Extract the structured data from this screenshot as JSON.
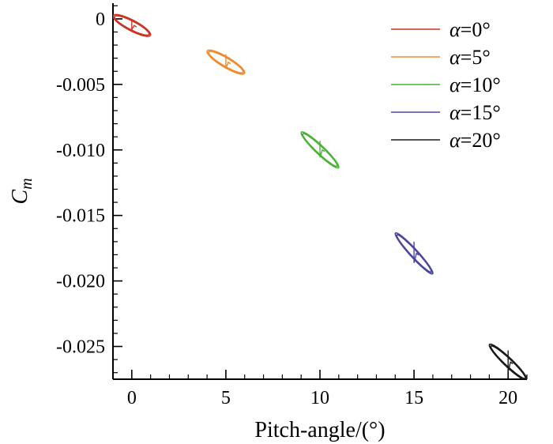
{
  "chart_data": {
    "type": "line",
    "title": "",
    "xlabel": "Pitch-angle/(°)",
    "ylabel_main": "C",
    "ylabel_sub": "m",
    "xlim": [
      -1,
      21
    ],
    "ylim": [
      -0.0275,
      0.0012
    ],
    "x_ticks": [
      0,
      5,
      10,
      15,
      20
    ],
    "x_tick_labels": [
      "0",
      "5",
      "10",
      "15",
      "20"
    ],
    "y_ticks": [
      0,
      -0.005,
      -0.01,
      -0.015,
      -0.02,
      -0.025
    ],
    "y_tick_labels": [
      "0",
      "-0.005",
      "-0.010",
      "-0.015",
      "-0.020",
      "-0.025"
    ],
    "grid": false,
    "legend_position": "top-right",
    "series": [
      {
        "name": "α=0°",
        "color": "#cc3322",
        "center_x": 0,
        "center_y": -0.0005,
        "amp_x": 1.0,
        "amp_y": 0.0007,
        "loop_width": 0.00045,
        "spike": 0.0004
      },
      {
        "name": "α=5°",
        "color": "#f08a2c",
        "center_x": 5,
        "center_y": -0.0033,
        "amp_x": 1.0,
        "amp_y": 0.0008,
        "loop_width": 0.00045,
        "spike": 0.0006
      },
      {
        "name": "α=10°",
        "color": "#4cb03a",
        "center_x": 10,
        "center_y": -0.01,
        "amp_x": 1.0,
        "amp_y": 0.0013,
        "loop_width": 0.00045,
        "spike": 0.0007
      },
      {
        "name": "α=15°",
        "color": "#4a46a0",
        "center_x": 15,
        "center_y": -0.0179,
        "amp_x": 1.0,
        "amp_y": 0.0015,
        "loop_width": 0.00045,
        "spike": 0.0009
      },
      {
        "name": "α=20°",
        "color": "#1a1a1a",
        "center_x": 20,
        "center_y": -0.0262,
        "amp_x": 1.0,
        "amp_y": 0.0013,
        "loop_width": 0.00045,
        "spike": 0.0009
      }
    ]
  }
}
